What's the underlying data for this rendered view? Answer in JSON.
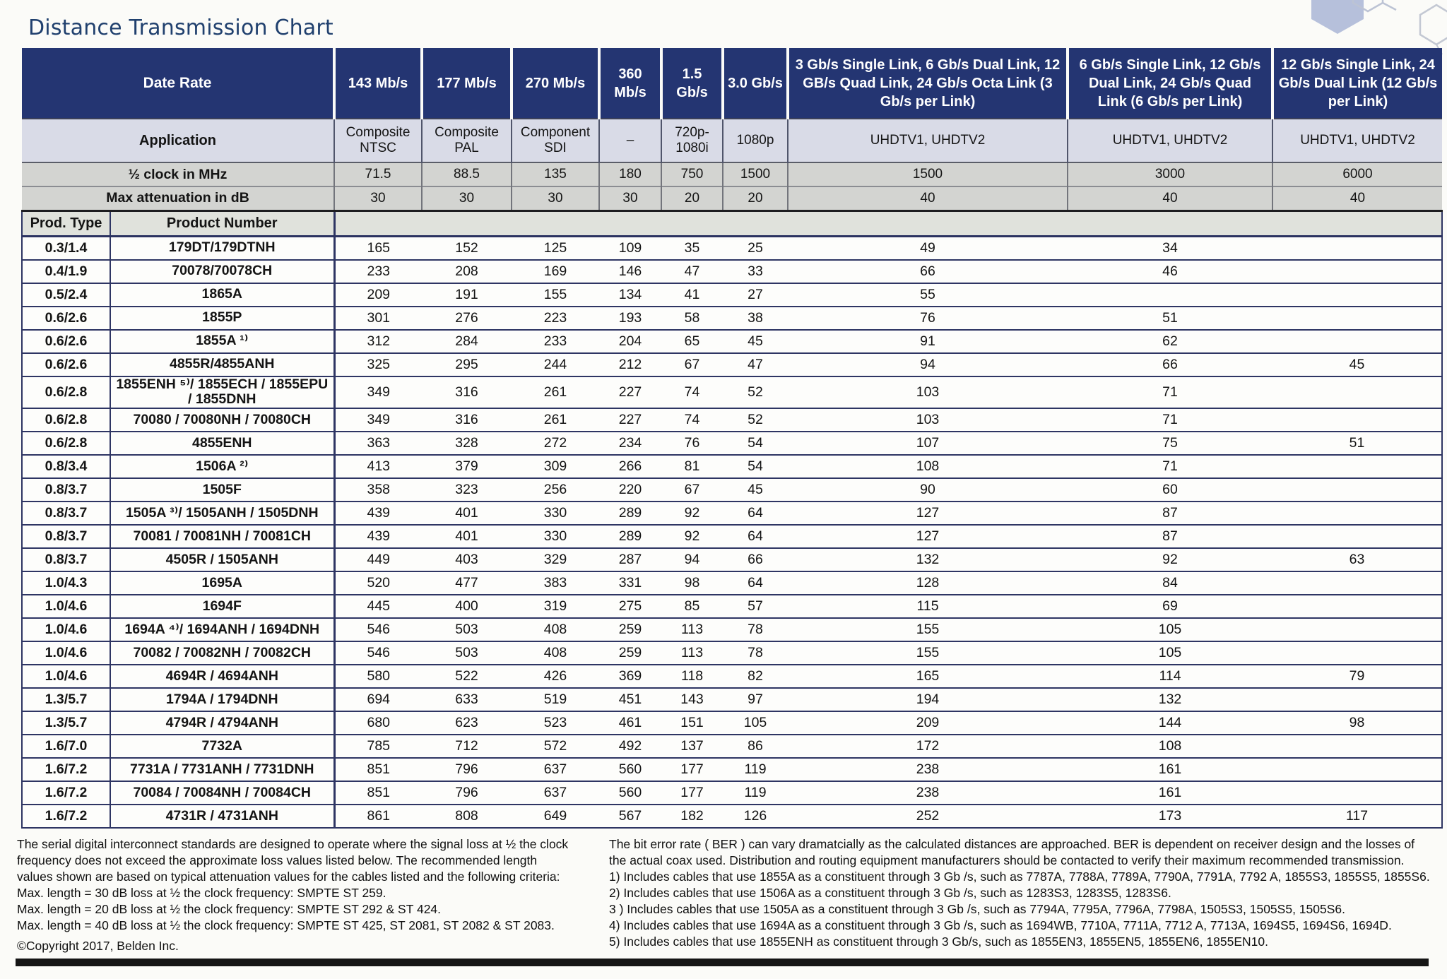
{
  "title": "Distance Transmission Chart",
  "table": {
    "data_rate_label": "Date Rate",
    "application_label": "Application",
    "clock_label": "½ clock in MHz",
    "attenuation_label": "Max attenuation in dB",
    "prod_type_label": "Prod. Type",
    "product_number_label": "Product Number",
    "columns": [
      {
        "rate": "143 Mb/s",
        "application": "Composite NTSC",
        "clock": "71.5",
        "attenuation": "30"
      },
      {
        "rate": "177 Mb/s",
        "application": "Composite PAL",
        "clock": "88.5",
        "attenuation": "30"
      },
      {
        "rate": "270 Mb/s",
        "application": "Component SDI",
        "clock": "135",
        "attenuation": "30"
      },
      {
        "rate": "360 Mb/s",
        "application": "–",
        "clock": "180",
        "attenuation": "30"
      },
      {
        "rate": "1.5 Gb/s",
        "application": "720p-1080i",
        "clock": "750",
        "attenuation": "20"
      },
      {
        "rate": "3.0 Gb/s",
        "application": "1080p",
        "clock": "1500",
        "attenuation": "20"
      },
      {
        "rate": "3 Gb/s Single Link, 6 Gb/s Dual Link, 12 GB/s Quad Link, 24 Gb/s Octa Link (3 Gb/s per Link)",
        "application": "UHDTV1, UHDTV2",
        "clock": "1500",
        "attenuation": "40"
      },
      {
        "rate": "6 Gb/s Single Link, 12 Gb/s Dual Link, 24 Gb/s Quad Link (6 Gb/s per Link)",
        "application": "UHDTV1, UHDTV2",
        "clock": "3000",
        "attenuation": "40"
      },
      {
        "rate": "12 Gb/s Single Link, 24 Gb/s Dual Link (12 Gb/s per Link)",
        "application": "UHDTV1, UHDTV2",
        "clock": "6000",
        "attenuation": "40"
      }
    ],
    "rows": [
      {
        "type": "0.3/1.4",
        "product": "179DT/179DTNH",
        "values": [
          "165",
          "152",
          "125",
          "109",
          "35",
          "25",
          "49",
          "34",
          ""
        ]
      },
      {
        "type": "0.4/1.9",
        "product": "70078/70078CH",
        "values": [
          "233",
          "208",
          "169",
          "146",
          "47",
          "33",
          "66",
          "46",
          ""
        ]
      },
      {
        "type": "0.5/2.4",
        "product": "1865A",
        "values": [
          "209",
          "191",
          "155",
          "134",
          "41",
          "27",
          "55",
          "",
          ""
        ]
      },
      {
        "type": "0.6/2.6",
        "product": "1855P",
        "values": [
          "301",
          "276",
          "223",
          "193",
          "58",
          "38",
          "76",
          "51",
          ""
        ]
      },
      {
        "type": "0.6/2.6",
        "product": "1855A ¹⁾",
        "values": [
          "312",
          "284",
          "233",
          "204",
          "65",
          "45",
          "91",
          "62",
          ""
        ]
      },
      {
        "type": "0.6/2.6",
        "product": "4855R/4855ANH",
        "values": [
          "325",
          "295",
          "244",
          "212",
          "67",
          "47",
          "94",
          "66",
          "45"
        ]
      },
      {
        "type": "0.6/2.8",
        "product": "1855ENH ⁵⁾/ 1855ECH / 1855EPU / 1855DNH",
        "values": [
          "349",
          "316",
          "261",
          "227",
          "74",
          "52",
          "103",
          "71",
          ""
        ]
      },
      {
        "type": "0.6/2.8",
        "product": "70080 / 70080NH / 70080CH",
        "values": [
          "349",
          "316",
          "261",
          "227",
          "74",
          "52",
          "103",
          "71",
          ""
        ]
      },
      {
        "type": "0.6/2.8",
        "product": "4855ENH",
        "values": [
          "363",
          "328",
          "272",
          "234",
          "76",
          "54",
          "107",
          "75",
          "51"
        ]
      },
      {
        "type": "0.8/3.4",
        "product": "1506A ²⁾",
        "values": [
          "413",
          "379",
          "309",
          "266",
          "81",
          "54",
          "108",
          "71",
          ""
        ]
      },
      {
        "type": "0.8/3.7",
        "product": "1505F",
        "values": [
          "358",
          "323",
          "256",
          "220",
          "67",
          "45",
          "90",
          "60",
          ""
        ]
      },
      {
        "type": "0.8/3.7",
        "product": "1505A ³⁾/ 1505ANH / 1505DNH",
        "values": [
          "439",
          "401",
          "330",
          "289",
          "92",
          "64",
          "127",
          "87",
          ""
        ]
      },
      {
        "type": "0.8/3.7",
        "product": "70081 / 70081NH / 70081CH",
        "values": [
          "439",
          "401",
          "330",
          "289",
          "92",
          "64",
          "127",
          "87",
          ""
        ]
      },
      {
        "type": "0.8/3.7",
        "product": "4505R / 1505ANH",
        "values": [
          "449",
          "403",
          "329",
          "287",
          "94",
          "66",
          "132",
          "92",
          "63"
        ]
      },
      {
        "type": "1.0/4.3",
        "product": "1695A",
        "values": [
          "520",
          "477",
          "383",
          "331",
          "98",
          "64",
          "128",
          "84",
          ""
        ]
      },
      {
        "type": "1.0/4.6",
        "product": "1694F",
        "values": [
          "445",
          "400",
          "319",
          "275",
          "85",
          "57",
          "115",
          "69",
          ""
        ]
      },
      {
        "type": "1.0/4.6",
        "product": "1694A ⁴⁾/ 1694ANH / 1694DNH",
        "values": [
          "546",
          "503",
          "408",
          "259",
          "113",
          "78",
          "155",
          "105",
          ""
        ]
      },
      {
        "type": "1.0/4.6",
        "product": "70082 / 70082NH / 70082CH",
        "values": [
          "546",
          "503",
          "408",
          "259",
          "113",
          "78",
          "155",
          "105",
          ""
        ]
      },
      {
        "type": "1.0/4.6",
        "product": "4694R / 4694ANH",
        "values": [
          "580",
          "522",
          "426",
          "369",
          "118",
          "82",
          "165",
          "114",
          "79"
        ]
      },
      {
        "type": "1.3/5.7",
        "product": "1794A / 1794DNH",
        "values": [
          "694",
          "633",
          "519",
          "451",
          "143",
          "97",
          "194",
          "132",
          ""
        ]
      },
      {
        "type": "1.3/5.7",
        "product": "4794R / 4794ANH",
        "values": [
          "680",
          "623",
          "523",
          "461",
          "151",
          "105",
          "209",
          "144",
          "98"
        ]
      },
      {
        "type": "1.6/7.0",
        "product": "7732A",
        "values": [
          "785",
          "712",
          "572",
          "492",
          "137",
          "86",
          "172",
          "108",
          ""
        ]
      },
      {
        "type": "1.6/7.2",
        "product": "7731A / 7731ANH / 7731DNH",
        "values": [
          "851",
          "796",
          "637",
          "560",
          "177",
          "119",
          "238",
          "161",
          ""
        ]
      },
      {
        "type": "1.6/7.2",
        "product": "70084 / 70084NH / 70084CH",
        "values": [
          "851",
          "796",
          "637",
          "560",
          "177",
          "119",
          "238",
          "161",
          ""
        ]
      },
      {
        "type": "1.6/7.2",
        "product": "4731R / 4731ANH",
        "values": [
          "861",
          "808",
          "649",
          "567",
          "182",
          "126",
          "252",
          "173",
          "117"
        ]
      }
    ]
  },
  "footer": {
    "left_lines": [
      "The serial digital interconnect standards are designed to operate where the signal loss at ½ the clock",
      "frequency does not exceed the approximate loss values listed below. The recommended length",
      "values shown are based on typical attenuation values for the cables listed and the following criteria:",
      "Max. length = 30 dB loss at ½ the clock frequency: SMPTE ST 259.",
      "Max. length = 20 dB loss at ½ the clock frequency: SMPTE ST 292 & ST 424.",
      "Max. length = 40 dB loss at ½ the clock frequency: SMPTE ST 425, ST 2081, ST 2082 & ST 2083."
    ],
    "right_lines": [
      "The bit error rate ( BER ) can vary dramatcially as the calculated distances are approached. BER is dependent on receiver design and the losses of",
      "the actual coax used. Distribution and routing equipment manufacturers should be contacted to verify their maximum recommended transmission.",
      "1) Includes cables that use 1855A as a constituent through 3 Gb /s, such as 7787A, 7788A, 7789A, 7790A, 7791A, 7792 A, 1855S3, 1855S5, 1855S6.",
      "2) Includes cables that use 1506A as a constituent through 3 Gb /s, such as 1283S3, 1283S5, 1283S6.",
      "3 ) Includes cables that use 1505A as a constituent through 3 Gb /s, such as 7794A, 7795A, 7796A, 7798A, 1505S3, 1505S5, 1505S6.",
      "4) Includes cables that use 1694A as a constituent through 3 Gb /s, such as 1694WB, 7710A, 7711A, 7712 A, 7713A, 1694S5, 1694S6, 1694D.",
      "5) Includes cables that use 1855ENH as constituent through 3 Gb/s, such as 1855EN3, 1855EN5, 1855EN6, 1855EN10."
    ],
    "copyright": "©Copyright 2017, Belden Inc."
  },
  "colors": {
    "header_navy": "#243572",
    "application_row": "#d9dbe7",
    "gray_row": "#d3d4d1",
    "row_line": "#2e3563",
    "title": "#20406e"
  }
}
